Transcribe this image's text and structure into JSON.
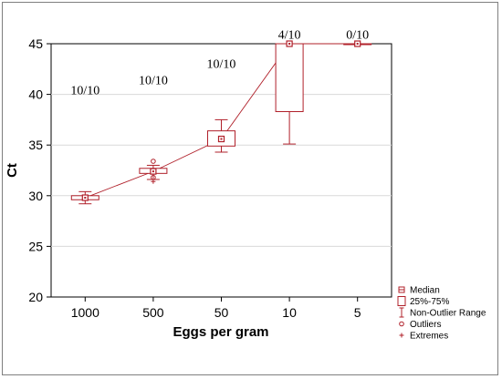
{
  "chart_data": {
    "type": "box",
    "xlabel": "Eggs per gram",
    "ylabel": "Ct",
    "categories": [
      "1000",
      "500",
      "50",
      "10",
      "5"
    ],
    "ylim": [
      20,
      45
    ],
    "yticks": [
      20,
      25,
      30,
      35,
      40,
      45
    ],
    "grid": true,
    "boxes": [
      {
        "category": "1000",
        "median": 29.8,
        "q1": 29.6,
        "q3": 30.0,
        "whisker_low": 29.2,
        "whisker_high": 30.4,
        "outliers": [],
        "extremes": [],
        "annotation": "10/10"
      },
      {
        "category": "500",
        "median": 32.4,
        "q1": 32.2,
        "q3": 32.7,
        "whisker_low": 31.6,
        "whisker_high": 33.0,
        "outliers": [
          31.8,
          33.4
        ],
        "extremes": [
          31.4
        ],
        "annotation": "10/10"
      },
      {
        "category": "50",
        "median": 35.6,
        "q1": 34.9,
        "q3": 36.4,
        "whisker_low": 34.3,
        "whisker_high": 37.5,
        "outliers": [],
        "extremes": [],
        "annotation": "10/10"
      },
      {
        "category": "10",
        "median": 45.0,
        "q1": 38.3,
        "q3": 45.0,
        "whisker_low": 35.1,
        "whisker_high": 45.0,
        "outliers": [],
        "extremes": [],
        "annotation": "4/10"
      },
      {
        "category": "5",
        "median": 45.0,
        "q1": 45.0,
        "q3": 45.0,
        "whisker_low": 45.0,
        "whisker_high": 45.0,
        "outliers": [],
        "extremes": [],
        "annotation": "0/10"
      }
    ],
    "median_line": true,
    "color": "#b0202a",
    "legend": {
      "placement": "bottom-right",
      "entries": [
        "Median",
        "25%-75%",
        "Non-Outlier Range",
        "Outliers",
        "Extremes"
      ]
    }
  }
}
